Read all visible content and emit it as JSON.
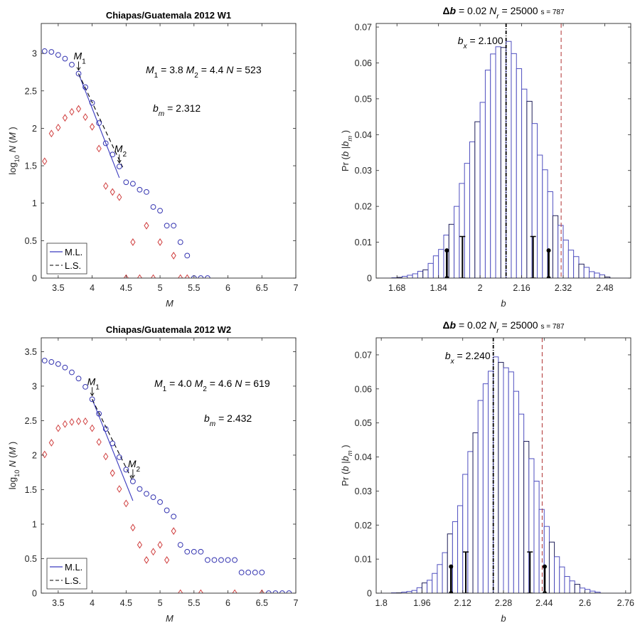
{
  "chart_data": [
    {
      "type": "scatter",
      "panel": "top-left",
      "title": "Chiapas/Guatemala 2012 W1",
      "xlabel": "M",
      "ylabel": "log10 N(M)",
      "xlim": [
        3.25,
        7
      ],
      "ylim": [
        0,
        3.4
      ],
      "xticks": [
        3.5,
        4,
        4.5,
        5,
        5.5,
        6,
        6.5,
        7
      ],
      "yticks": [
        0,
        0.5,
        1,
        1.5,
        2,
        2.5,
        3
      ],
      "grid": false,
      "legend": {
        "placement": "bottom-left",
        "entries": [
          "M.L.",
          "L.S."
        ]
      },
      "series": [
        {
          "name": "cumulative",
          "marker": "circle",
          "color": "#3333b0",
          "x": [
            3.3,
            3.4,
            3.5,
            3.6,
            3.7,
            3.8,
            3.9,
            4.0,
            4.1,
            4.2,
            4.3,
            4.4,
            4.5,
            4.6,
            4.7,
            4.8,
            4.9,
            5.0,
            5.1,
            5.2,
            5.3,
            5.4,
            5.5,
            5.6,
            5.7
          ],
          "y": [
            3.03,
            3.02,
            2.98,
            2.93,
            2.85,
            2.73,
            2.55,
            2.34,
            2.07,
            1.8,
            1.65,
            1.49,
            1.28,
            1.26,
            1.18,
            1.15,
            0.95,
            0.9,
            0.7,
            0.7,
            0.48,
            0.3,
            0,
            0,
            0
          ]
        },
        {
          "name": "incremental",
          "marker": "diamond",
          "color": "#d04040",
          "x": [
            3.3,
            3.4,
            3.5,
            3.6,
            3.7,
            3.8,
            3.9,
            4.0,
            4.1,
            4.2,
            4.3,
            4.4,
            4.5,
            4.6,
            4.7,
            4.8,
            4.9,
            5.0,
            5.2,
            5.3,
            5.4
          ],
          "y": [
            1.56,
            1.93,
            2.01,
            2.14,
            2.22,
            2.26,
            2.15,
            2.02,
            1.73,
            1.23,
            1.15,
            1.08,
            0,
            0.48,
            0,
            0.7,
            0,
            0.48,
            0.3,
            0,
            0
          ]
        },
        {
          "name": "M.L.",
          "type": "line",
          "style": "solid",
          "color": "#3b3bbf",
          "x": [
            3.8,
            4.4
          ],
          "y": [
            2.73,
            1.34
          ]
        },
        {
          "name": "L.S.",
          "type": "line",
          "style": "dashed",
          "color": "#000000",
          "x": [
            3.8,
            4.45
          ],
          "y": [
            2.73,
            1.48
          ]
        }
      ],
      "annotations": [
        {
          "text": "M1",
          "x": 3.8,
          "y": 2.73,
          "arrow": true
        },
        {
          "text": "M2",
          "x": 4.4,
          "y": 1.49,
          "arrow": true
        }
      ],
      "info_line": {
        "m1_label": "M",
        "m1_sub": "1",
        "m1_val": " = 3.8  ",
        "m2_label": "M",
        "m2_sub": "2",
        "m2_val": " = 4.4  ",
        "n_label": "N",
        "n_val": " = 523"
      },
      "bm_line": {
        "label": "b",
        "sub": "m",
        "value": " = 2.312"
      }
    },
    {
      "type": "bar",
      "panel": "top-right",
      "title": "Δb = 0.02  Nr = 25000  s = 787",
      "title_parts": {
        "delta": "Δ",
        "b": "b",
        "delta_val": " = 0.02  ",
        "nr": "N",
        "nr_sub": "r",
        "nr_val": " = 25000  ",
        "s": "s = 787"
      },
      "xlabel": "b",
      "ylabel": "Pr(b|bm)",
      "xlim": [
        1.6,
        2.58
      ],
      "ylim": [
        0,
        0.071
      ],
      "xticks": [
        1.68,
        1.84,
        2,
        2.16,
        2.32,
        2.48
      ],
      "yticks": [
        0,
        0.01,
        0.02,
        0.03,
        0.04,
        0.05,
        0.06,
        0.07
      ],
      "bin_width": 0.02,
      "bin_starts": [
        1.66,
        1.68,
        1.7,
        1.72,
        1.74,
        1.76,
        1.78,
        1.8,
        1.82,
        1.84,
        1.86,
        1.88,
        1.9,
        1.92,
        1.94,
        1.96,
        1.98,
        2.0,
        2.02,
        2.04,
        2.06,
        2.08,
        2.1,
        2.12,
        2.14,
        2.16,
        2.18,
        2.2,
        2.22,
        2.24,
        2.26,
        2.28,
        2.3,
        2.32,
        2.34,
        2.36,
        2.38,
        2.4,
        2.42,
        2.44,
        2.46,
        2.48
      ],
      "values": [
        0.0001,
        0.0002,
        0.0005,
        0.0008,
        0.0012,
        0.0019,
        0.0023,
        0.0041,
        0.0062,
        0.008,
        0.012,
        0.015,
        0.02,
        0.0264,
        0.032,
        0.038,
        0.0436,
        0.049,
        0.058,
        0.0625,
        0.0645,
        0.0643,
        0.066,
        0.0626,
        0.0584,
        0.0527,
        0.0493,
        0.0431,
        0.0343,
        0.0302,
        0.0241,
        0.0174,
        0.0147,
        0.0106,
        0.0078,
        0.006,
        0.0039,
        0.003,
        0.0018,
        0.0014,
        0.0009,
        0.0003
      ],
      "bx": {
        "value": 2.1,
        "label": "b",
        "sub": "x",
        "text": " = 2.100"
      },
      "bm_line": 2.312,
      "interval_markers": [
        {
          "x": 1.872,
          "height": 0.0077,
          "style": "dot"
        },
        {
          "x": 1.932,
          "height": 0.0116,
          "style": "plus"
        },
        {
          "x": 2.204,
          "height": 0.0116,
          "style": "plus"
        },
        {
          "x": 2.264,
          "height": 0.0077,
          "style": "dot"
        }
      ]
    },
    {
      "type": "scatter",
      "panel": "bottom-left",
      "title": "Chiapas/Guatemala 2012 W2",
      "xlabel": "M",
      "ylabel": "log10 N(M)",
      "xlim": [
        3.25,
        7
      ],
      "ylim": [
        0,
        3.7
      ],
      "xticks": [
        3.5,
        4,
        4.5,
        5,
        5.5,
        6,
        6.5,
        7
      ],
      "yticks": [
        0,
        0.5,
        1,
        1.5,
        2,
        2.5,
        3,
        3.5
      ],
      "grid": false,
      "legend": {
        "placement": "bottom-left",
        "entries": [
          "M.L.",
          "L.S."
        ]
      },
      "series": [
        {
          "name": "cumulative",
          "marker": "circle",
          "color": "#3333b0",
          "x": [
            3.3,
            3.4,
            3.5,
            3.6,
            3.7,
            3.8,
            3.9,
            4.0,
            4.1,
            4.2,
            4.3,
            4.4,
            4.5,
            4.6,
            4.7,
            4.8,
            4.9,
            5.0,
            5.1,
            5.2,
            5.3,
            5.4,
            5.5,
            5.6,
            5.7,
            5.8,
            5.9,
            6.0,
            6.1,
            6.2,
            6.3,
            6.4,
            6.5,
            6.6,
            6.7,
            6.8,
            6.9
          ],
          "y": [
            3.37,
            3.35,
            3.32,
            3.27,
            3.2,
            3.11,
            2.99,
            2.81,
            2.6,
            2.38,
            2.17,
            1.97,
            1.79,
            1.62,
            1.51,
            1.44,
            1.39,
            1.32,
            1.2,
            1.11,
            0.7,
            0.6,
            0.6,
            0.6,
            0.48,
            0.48,
            0.48,
            0.48,
            0.48,
            0.3,
            0.3,
            0.3,
            0.3,
            0,
            0,
            0,
            0
          ]
        },
        {
          "name": "incremental",
          "marker": "diamond",
          "color": "#d04040",
          "x": [
            3.3,
            3.4,
            3.5,
            3.6,
            3.7,
            3.8,
            3.9,
            4.0,
            4.1,
            4.2,
            4.3,
            4.4,
            4.5,
            4.6,
            4.7,
            4.8,
            4.9,
            5.0,
            5.1,
            5.2,
            5.3,
            5.6,
            6.1,
            6.5
          ],
          "y": [
            2.01,
            2.18,
            2.39,
            2.45,
            2.48,
            2.49,
            2.49,
            2.39,
            2.19,
            1.98,
            1.74,
            1.51,
            1.3,
            0.95,
            0.7,
            0.48,
            0.6,
            0.7,
            0.48,
            0.9,
            0,
            0,
            0,
            0
          ]
        },
        {
          "name": "M.L.",
          "type": "line",
          "style": "solid",
          "color": "#3b3bbf",
          "x": [
            4.0,
            4.6
          ],
          "y": [
            2.81,
            1.34
          ]
        },
        {
          "name": "L.S.",
          "type": "line",
          "style": "dashed",
          "color": "#000000",
          "x": [
            4.0,
            4.6
          ],
          "y": [
            2.81,
            1.62
          ]
        }
      ],
      "annotations": [
        {
          "text": "M1",
          "x": 4.0,
          "y": 2.81,
          "arrow": true
        },
        {
          "text": "M2",
          "x": 4.6,
          "y": 1.62,
          "arrow": true
        }
      ],
      "info_line": {
        "m1_label": "M",
        "m1_sub": "1",
        "m1_val": " = 4.0  ",
        "m2_label": "M",
        "m2_sub": "2",
        "m2_val": " = 4.6  ",
        "n_label": "N",
        "n_val": " = 619"
      },
      "bm_line": {
        "label": "b",
        "sub": "m",
        "value": " = 2.432"
      }
    },
    {
      "type": "bar",
      "panel": "bottom-right",
      "title": "Δb = 0.02  Nr = 25000  s = 787",
      "title_parts": {
        "delta": "Δ",
        "b": "b",
        "delta_val": " = 0.02  ",
        "nr": "N",
        "nr_sub": "r",
        "nr_val": " = 25000  ",
        "s": "s = 787"
      },
      "xlabel": "b",
      "ylabel": "Pr(b|bm)",
      "xlim": [
        1.78,
        2.78
      ],
      "ylim": [
        0,
        0.075
      ],
      "xticks": [
        1.8,
        1.96,
        2.12,
        2.28,
        2.44,
        2.6,
        2.76
      ],
      "yticks": [
        0,
        0.01,
        0.02,
        0.03,
        0.04,
        0.05,
        0.06,
        0.07
      ],
      "bin_width": 0.02,
      "bin_starts": [
        1.84,
        1.86,
        1.88,
        1.9,
        1.92,
        1.94,
        1.96,
        1.98,
        2.0,
        2.02,
        2.04,
        2.06,
        2.08,
        2.1,
        2.12,
        2.14,
        2.16,
        2.18,
        2.2,
        2.22,
        2.24,
        2.26,
        2.28,
        2.3,
        2.32,
        2.34,
        2.36,
        2.38,
        2.4,
        2.42,
        2.44,
        2.46,
        2.48,
        2.5,
        2.52,
        2.54,
        2.56,
        2.58,
        2.6,
        2.62,
        2.64
      ],
      "values": [
        0.0001,
        0.0001,
        0.0003,
        0.0005,
        0.0008,
        0.0016,
        0.003,
        0.0038,
        0.0058,
        0.0084,
        0.0119,
        0.0174,
        0.021,
        0.0257,
        0.0349,
        0.0416,
        0.0471,
        0.0566,
        0.0615,
        0.0652,
        0.0694,
        0.0678,
        0.0662,
        0.065,
        0.0593,
        0.0526,
        0.0446,
        0.0395,
        0.0329,
        0.0246,
        0.0196,
        0.015,
        0.0107,
        0.0077,
        0.0049,
        0.0036,
        0.0026,
        0.0015,
        0.0011,
        0.0006,
        0.0003
      ],
      "bx": {
        "value": 2.24,
        "label": "b",
        "sub": "x",
        "text": " = 2.240"
      },
      "bm_line": 2.432,
      "interval_markers": [
        {
          "x": 2.074,
          "height": 0.0078,
          "style": "dot"
        },
        {
          "x": 2.132,
          "height": 0.0121,
          "style": "plus"
        },
        {
          "x": 2.384,
          "height": 0.0121,
          "style": "plus"
        },
        {
          "x": 2.442,
          "height": 0.0078,
          "style": "dot"
        }
      ]
    }
  ]
}
